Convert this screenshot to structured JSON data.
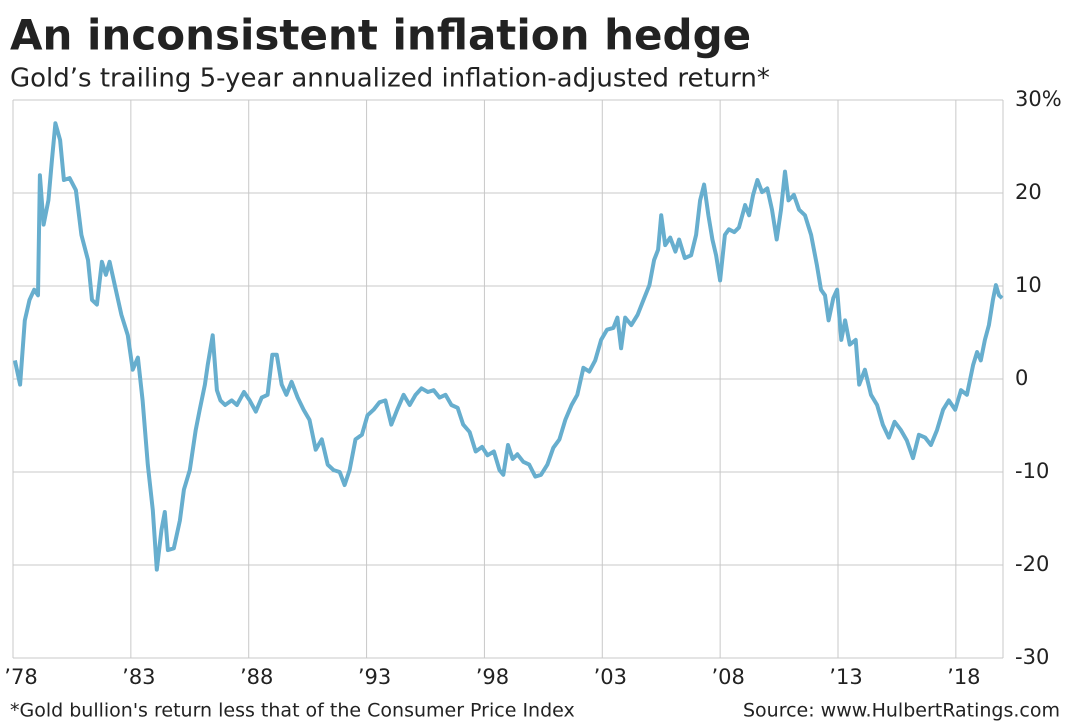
{
  "chart_data": {
    "type": "line",
    "title": "An inconsistent inflation hedge",
    "subtitle": "Gold’s trailing 5-year annualized inflation-adjusted return*",
    "footnote": "*Gold bullion's return less that of the Consumer Price Index",
    "source": "Source: www.HulbertRatings.com",
    "color": "#67aece",
    "grid": true,
    "xlim": [
      1978,
      2020
    ],
    "xticks": [
      {
        "value": 1978,
        "label": "’78"
      },
      {
        "value": 1983,
        "label": "’83"
      },
      {
        "value": 1988,
        "label": "’88"
      },
      {
        "value": 1993,
        "label": "’93"
      },
      {
        "value": 1998,
        "label": "’98"
      },
      {
        "value": 2003,
        "label": "’03"
      },
      {
        "value": 2008,
        "label": "’08"
      },
      {
        "value": 2013,
        "label": "’13"
      },
      {
        "value": 2018,
        "label": "’18"
      }
    ],
    "ylim": [
      -30,
      30
    ],
    "yticks": [
      -30,
      -20,
      -10,
      0,
      10,
      20,
      {
        "value": 30,
        "label": "30%"
      }
    ],
    "x": [
      1978.08,
      1978.3,
      1978.5,
      1978.7,
      1978.9,
      1979.06,
      1979.14,
      1979.3,
      1979.5,
      1979.65,
      1979.8,
      1980.0,
      1980.16,
      1980.4,
      1980.67,
      1980.9,
      1981.18,
      1981.35,
      1981.56,
      1981.77,
      1981.94,
      1982.1,
      1982.36,
      1982.6,
      1982.87,
      1983.08,
      1983.3,
      1983.5,
      1983.72,
      1983.93,
      1984.1,
      1984.3,
      1984.44,
      1984.57,
      1984.82,
      1985.08,
      1985.25,
      1985.5,
      1985.75,
      1985.92,
      1986.14,
      1986.26,
      1986.47,
      1986.65,
      1986.8,
      1987.0,
      1987.28,
      1987.5,
      1987.8,
      1988.04,
      1988.3,
      1988.55,
      1988.8,
      1989.0,
      1989.19,
      1989.4,
      1989.6,
      1989.82,
      1990.08,
      1990.33,
      1990.58,
      1990.84,
      1991.1,
      1991.35,
      1991.6,
      1991.86,
      1992.07,
      1992.28,
      1992.53,
      1992.8,
      1993.04,
      1993.3,
      1993.55,
      1993.8,
      1994.05,
      1994.3,
      1994.57,
      1994.83,
      1995.08,
      1995.33,
      1995.6,
      1995.85,
      1996.1,
      1996.35,
      1996.6,
      1996.86,
      1997.1,
      1997.37,
      1997.63,
      1997.9,
      1998.13,
      1998.4,
      1998.64,
      1998.8,
      1999.0,
      1999.2,
      1999.4,
      1999.65,
      1999.9,
      2000.16,
      2000.4,
      2000.67,
      2000.92,
      2001.18,
      2001.43,
      2001.7,
      2001.94,
      2002.2,
      2002.45,
      2002.7,
      2002.95,
      2003.2,
      2003.47,
      2003.64,
      2003.8,
      2003.97,
      2004.23,
      2004.5,
      2004.75,
      2005.0,
      2005.2,
      2005.37,
      2005.5,
      2005.67,
      2005.88,
      2006.1,
      2006.26,
      2006.5,
      2006.77,
      2006.98,
      2007.15,
      2007.32,
      2007.5,
      2007.67,
      2007.83,
      2008.0,
      2008.2,
      2008.37,
      2008.6,
      2008.8,
      2009.06,
      2009.23,
      2009.4,
      2009.58,
      2009.78,
      2010.0,
      2010.2,
      2010.4,
      2010.58,
      2010.75,
      2010.9,
      2011.13,
      2011.35,
      2011.6,
      2011.86,
      2012.1,
      2012.28,
      2012.45,
      2012.6,
      2012.8,
      2012.96,
      2013.14,
      2013.3,
      2013.5,
      2013.75,
      2013.9,
      2014.14,
      2014.4,
      2014.66,
      2014.9,
      2015.16,
      2015.4,
      2015.67,
      2015.92,
      2016.18,
      2016.43,
      2016.7,
      2016.94,
      2017.2,
      2017.46,
      2017.7,
      2017.97,
      2018.22,
      2018.47,
      2018.73,
      2018.9,
      2019.06,
      2019.23,
      2019.4,
      2019.57,
      2019.7,
      2019.83,
      2019.96
    ],
    "values": [
      2.0,
      -0.6,
      6.3,
      8.5,
      9.6,
      9.0,
      21.9,
      16.6,
      19.2,
      23.5,
      27.5,
      25.7,
      21.4,
      21.6,
      20.3,
      15.5,
      12.8,
      8.5,
      8.0,
      12.6,
      11.2,
      12.6,
      9.6,
      6.9,
      4.7,
      1.0,
      2.3,
      -2.3,
      -9.2,
      -14.1,
      -20.5,
      -16.2,
      -14.3,
      -18.4,
      -18.2,
      -15.2,
      -11.9,
      -9.8,
      -5.5,
      -3.3,
      -0.6,
      1.5,
      4.7,
      -1.2,
      -2.3,
      -2.8,
      -2.3,
      -2.8,
      -1.4,
      -2.3,
      -3.5,
      -2.0,
      -1.7,
      2.6,
      2.6,
      -0.6,
      -1.7,
      -0.3,
      -2.0,
      -3.3,
      -4.4,
      -7.6,
      -6.5,
      -9.2,
      -9.8,
      -10.0,
      -11.4,
      -9.8,
      -6.5,
      -6.0,
      -3.9,
      -3.3,
      -2.5,
      -2.3,
      -4.9,
      -3.3,
      -1.7,
      -2.8,
      -1.7,
      -1.0,
      -1.4,
      -1.2,
      -2.0,
      -1.7,
      -2.8,
      -3.1,
      -4.9,
      -5.7,
      -7.8,
      -7.3,
      -8.2,
      -7.8,
      -9.8,
      -10.3,
      -7.1,
      -8.6,
      -8.1,
      -8.9,
      -9.2,
      -10.5,
      -10.3,
      -9.2,
      -7.4,
      -6.5,
      -4.4,
      -2.8,
      -1.7,
      1.2,
      0.8,
      2.0,
      4.2,
      5.3,
      5.5,
      6.6,
      3.3,
      6.6,
      5.8,
      6.9,
      8.5,
      10.1,
      12.8,
      13.9,
      17.6,
      14.4,
      15.2,
      13.7,
      15.0,
      13.0,
      13.3,
      15.5,
      19.2,
      20.9,
      17.6,
      15.0,
      13.3,
      10.6,
      15.5,
      16.1,
      15.8,
      16.3,
      18.7,
      17.6,
      19.8,
      21.4,
      20.1,
      20.5,
      18.2,
      15.0,
      18.2,
      22.3,
      19.2,
      19.8,
      18.2,
      17.6,
      15.5,
      12.3,
      9.6,
      9.0,
      6.3,
      8.7,
      9.6,
      4.2,
      6.3,
      3.7,
      4.2,
      -0.6,
      1.0,
      -1.7,
      -2.8,
      -4.9,
      -6.3,
      -4.6,
      -5.5,
      -6.6,
      -8.5,
      -6.0,
      -6.3,
      -7.1,
      -5.5,
      -3.3,
      -2.3,
      -3.3,
      -1.2,
      -1.7,
      1.5,
      2.9,
      2.0,
      4.2,
      5.8,
      8.5,
      10.1,
      9.0,
      8.7
    ]
  }
}
